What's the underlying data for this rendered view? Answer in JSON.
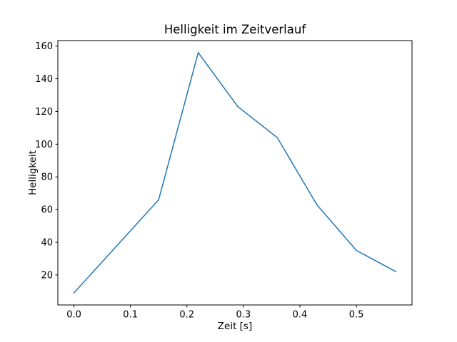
{
  "figure": {
    "background": "#ffffff",
    "spine_color": "#000000",
    "text_color": "#000000"
  },
  "chart_data": {
    "type": "line",
    "title": "Helligkeit im Zeitverlauf",
    "xlabel": "Zeit [s]",
    "ylabel": "Helligkeit",
    "x": [
      0.0,
      0.15,
      0.22,
      0.29,
      0.36,
      0.43,
      0.5,
      0.57
    ],
    "y": [
      9,
      66,
      156,
      123,
      104,
      63,
      35,
      22
    ],
    "series_name": "Helligkeit",
    "line_color": "#1f77b4",
    "line_width": 1.5,
    "xlim": [
      -0.0285,
      0.5985
    ],
    "ylim": [
      1.65,
      163.35
    ],
    "xticks": [
      0.0,
      0.1,
      0.2,
      0.3,
      0.4,
      0.5
    ],
    "xtick_labels": [
      "0.0",
      "0.1",
      "0.2",
      "0.3",
      "0.4",
      "0.5"
    ],
    "yticks": [
      20,
      40,
      60,
      80,
      100,
      120,
      140,
      160
    ],
    "ytick_labels": [
      "20",
      "40",
      "60",
      "80",
      "100",
      "120",
      "140",
      "160"
    ],
    "grid": false,
    "legend": null,
    "marker": "none"
  }
}
